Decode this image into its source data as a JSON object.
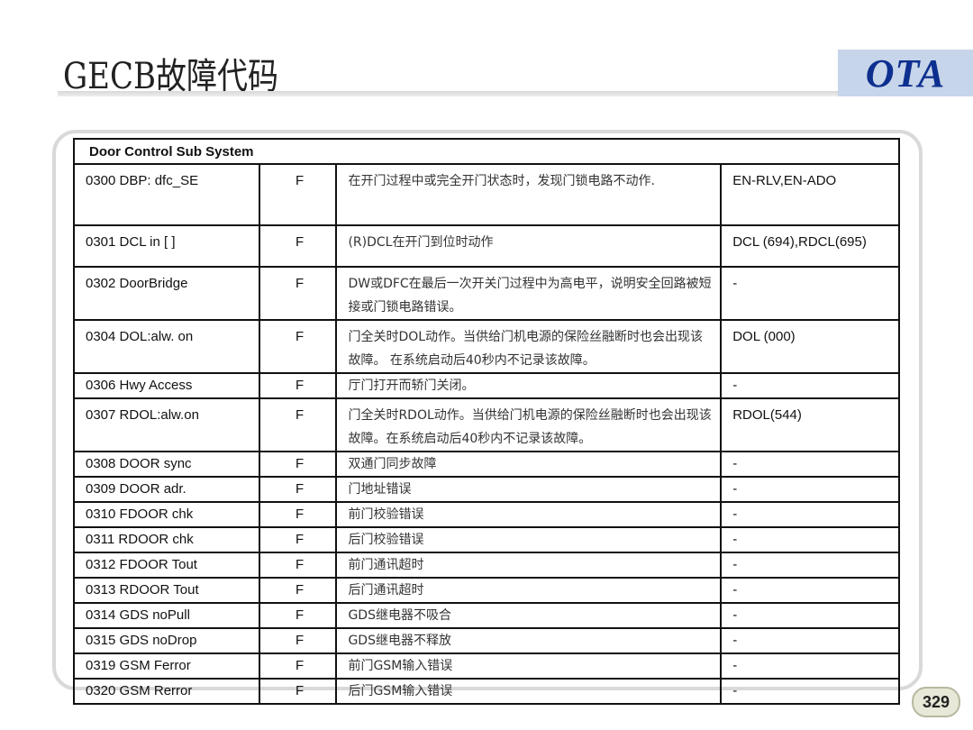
{
  "title": "GECB故障代码",
  "logo": "OTA",
  "page_number": "329",
  "table": {
    "header": "Door Control Sub System",
    "rows": [
      {
        "code": "0300  DBP: dfc_SE",
        "type": "F",
        "desc": "在开门过程中或完全开门状态时，发现门锁电路不动作.",
        "ref": "EN-RLV,EN-ADO",
        "h": 68
      },
      {
        "code": "0301  DCL in [ ]",
        "type": "F",
        "desc": "(R)DCL在开门到位时动作",
        "ref": "DCL   (694),RDCL(695)",
        "h": 46
      },
      {
        "code": "0302  DoorBridge",
        "type": "F",
        "desc": "DW或DFC在最后一次开关门过程中为高电平，说明安全回路被短接或门锁电路错误。",
        "ref": "-",
        "h": 54
      },
      {
        "code": "0304  DOL:alw. on",
        "type": "F",
        "desc": "门全关时DOL动作。当供给门机电源的保险丝融断时也会出现该故障。 在系统启动后40秒内不记录该故障。",
        "ref": "DOL   (000)",
        "h": 54
      },
      {
        "code": "0306  Hwy Access",
        "type": "F",
        "desc": "厅门打开而轿门关闭。",
        "ref": "-",
        "h": 27
      },
      {
        "code": "0307  RDOL:alw.on",
        "type": "F",
        "desc": "门全关时RDOL动作。当供给门机电源的保险丝融断时也会出现该故障。在系统启动后40秒内不记录该故障。",
        "ref": "RDOL(544)",
        "h": 55
      },
      {
        "code": "0308  DOOR sync",
        "type": "F",
        "desc": "双通门同步故障",
        "ref": "-",
        "h": 27
      },
      {
        "code": "0309  DOOR adr.",
        "type": "F",
        "desc": " 门地址错误",
        "ref": "-",
        "h": 27
      },
      {
        "code": "0310  FDOOR chk",
        "type": "F",
        "desc": "前门校验错误",
        "ref": "-",
        "h": 27
      },
      {
        "code": "0311  RDOOR chk",
        "type": "F",
        "desc": "后门校验错误",
        "ref": "-",
        "h": 27
      },
      {
        "code": "0312  FDOOR Tout",
        "type": "F",
        "desc": "前门通讯超时",
        "ref": "-",
        "h": 27
      },
      {
        "code": "0313  RDOOR Tout",
        "type": "F",
        "desc": "后门通讯超时",
        "ref": "-",
        "h": 27
      },
      {
        "code": "0314  GDS noPull",
        "type": "F",
        "desc": "GDS继电器不吸合",
        "ref": "-",
        "h": 27
      },
      {
        "code": "0315  GDS noDrop",
        "type": "F",
        "desc": "GDS继电器不释放",
        "ref": "-",
        "h": 27
      },
      {
        "code": "0319  GSM Ferror",
        "type": "F",
        "desc": "前门GSM输入错误",
        "ref": "-",
        "h": 27
      },
      {
        "code": "0320  GSM Rerror",
        "type": "F",
        "desc": "后门GSM输入错误",
        "ref": "-",
        "h": 27
      }
    ]
  }
}
